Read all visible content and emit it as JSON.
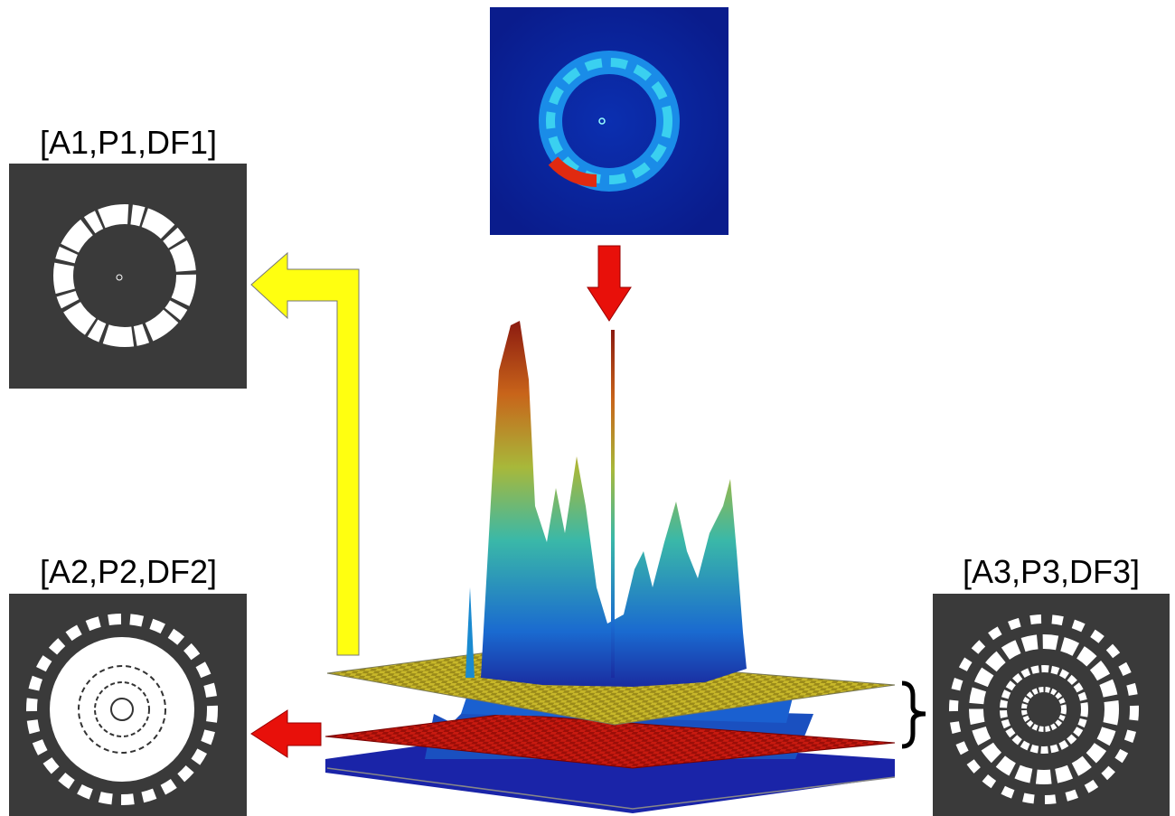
{
  "labels": [
    "[A1,P1,DF1]",
    "[A2,P2,DF2]",
    "[A3,P3,DF3]"
  ]
}
